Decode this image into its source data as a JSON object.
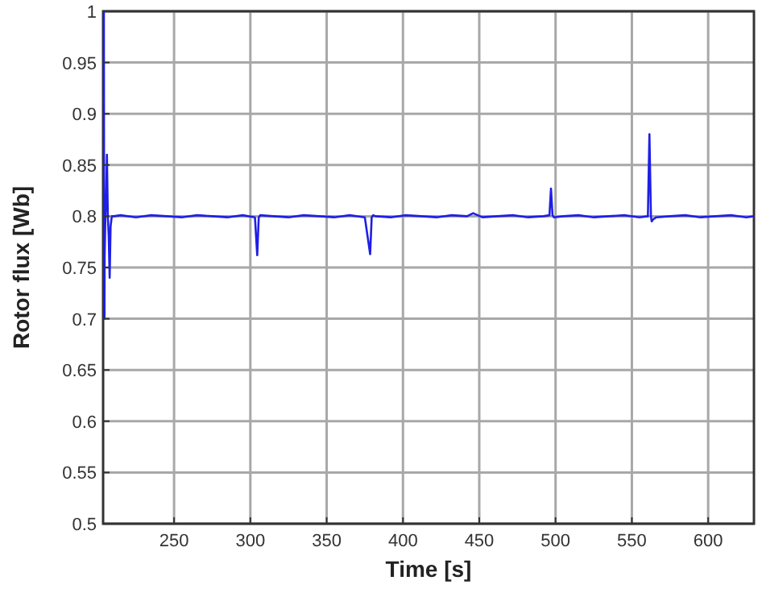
{
  "chart_data": {
    "type": "line",
    "xlabel": "Time [s]",
    "ylabel": "Rotor flux [Wb]",
    "xlim": [
      203.5,
      630
    ],
    "ylim": [
      0.5,
      1
    ],
    "xticks": [
      250,
      300,
      350,
      400,
      450,
      500,
      550,
      600
    ],
    "yticks": [
      0.5,
      0.55,
      0.6,
      0.65,
      0.7,
      0.75,
      0.8,
      0.85,
      0.9,
      0.95,
      1
    ],
    "grid": true,
    "series": [
      {
        "color": "#1f1fe6",
        "x": [
          204,
          204.2,
          204.4,
          204.5,
          205.0,
          205.5,
          206.0,
          206.6,
          207.2,
          207.8,
          208.4,
          209.2,
          210.5,
          215,
          225,
          235,
          245,
          255,
          265,
          275,
          285,
          295,
          303,
          304.5,
          305.5,
          306.5,
          315,
          325,
          335,
          345,
          355,
          365,
          375,
          378.5,
          379.5,
          380.5,
          382,
          392,
          402,
          412,
          422,
          432,
          442,
          446,
          452,
          462,
          472,
          482,
          492,
          496,
          497,
          498,
          499,
          505,
          515,
          525,
          535,
          545,
          555,
          560.5,
          561.5,
          562.5,
          563,
          564,
          566,
          575,
          585,
          595,
          605,
          615,
          625,
          630
        ],
        "values": [
          1,
          0.73,
          0.7,
          0.76,
          0.8,
          0.82,
          0.86,
          0.8,
          0.78,
          0.74,
          0.79,
          0.8,
          0.8,
          0.801,
          0.799,
          0.801,
          0.8,
          0.799,
          0.801,
          0.8,
          0.799,
          0.801,
          0.799,
          0.762,
          0.799,
          0.801,
          0.8,
          0.799,
          0.801,
          0.8,
          0.799,
          0.801,
          0.799,
          0.763,
          0.799,
          0.801,
          0.8,
          0.799,
          0.801,
          0.8,
          0.799,
          0.801,
          0.8,
          0.803,
          0.799,
          0.8,
          0.801,
          0.799,
          0.8,
          0.801,
          0.827,
          0.801,
          0.799,
          0.8,
          0.801,
          0.799,
          0.8,
          0.801,
          0.799,
          0.8,
          0.88,
          0.8,
          0.795,
          0.797,
          0.799,
          0.8,
          0.801,
          0.799,
          0.8,
          0.801,
          0.799,
          0.8
        ]
      }
    ]
  }
}
